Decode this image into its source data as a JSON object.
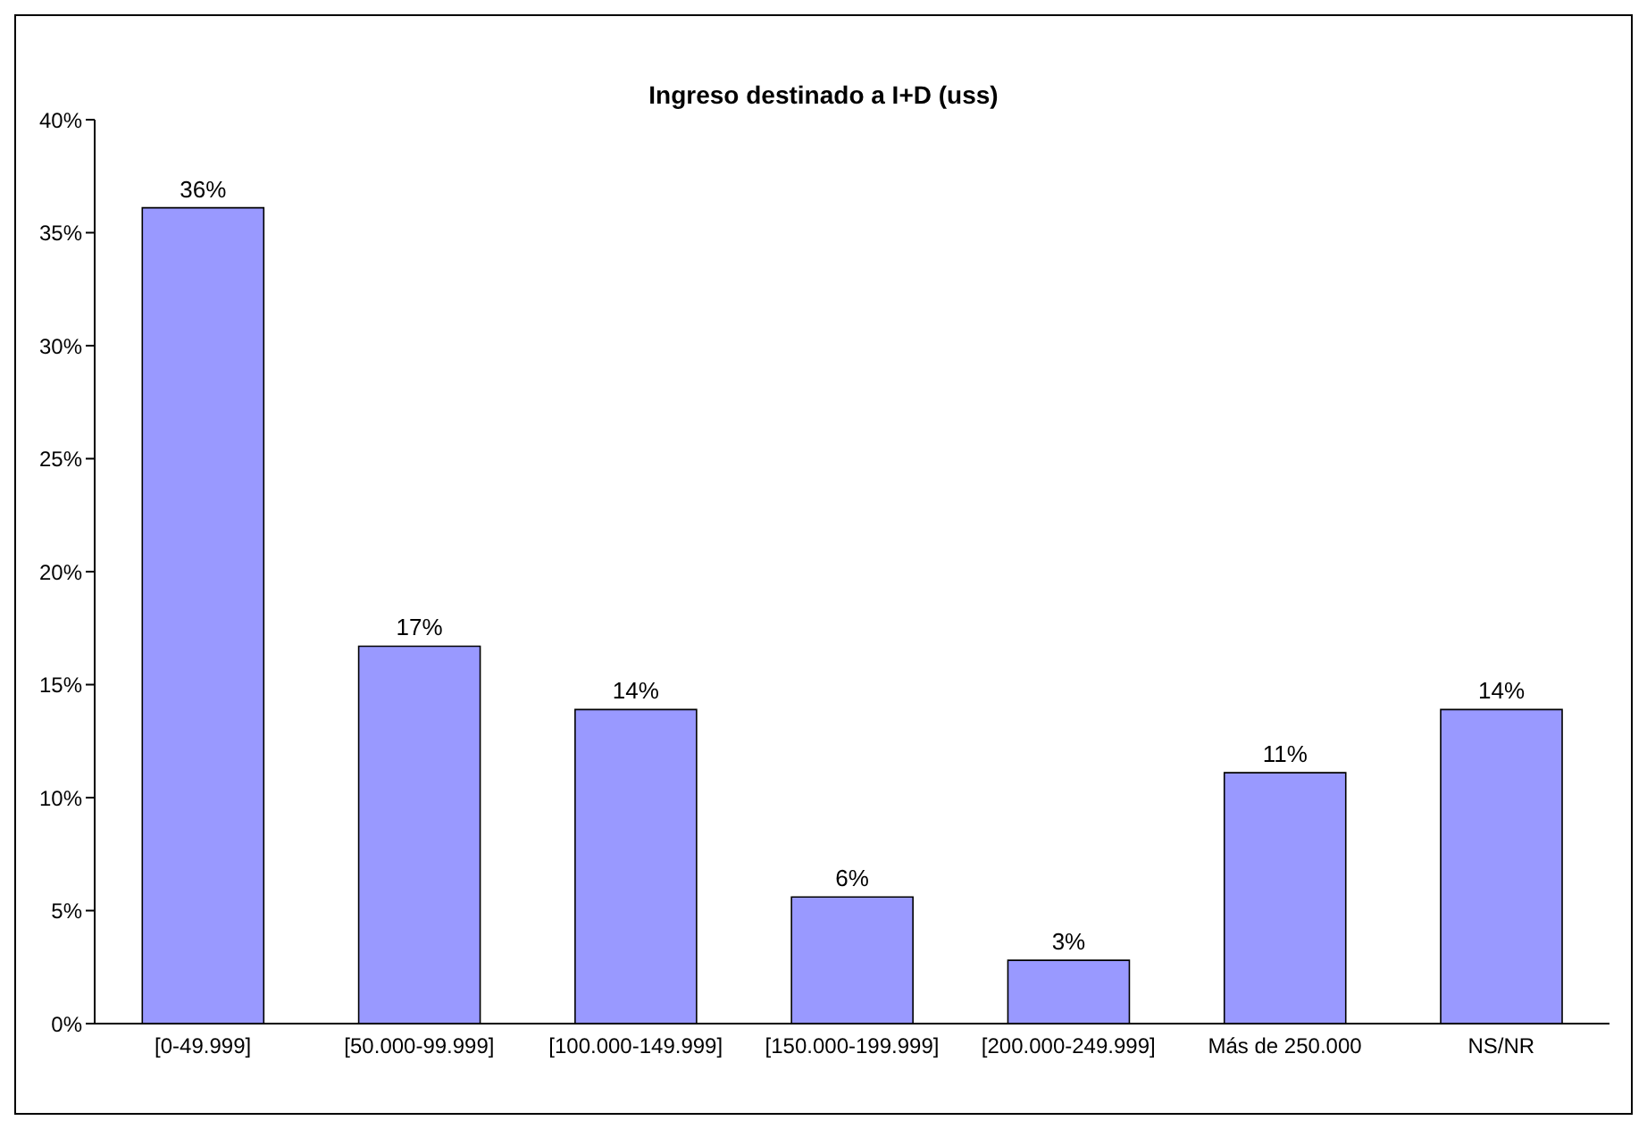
{
  "chart_data": {
    "type": "bar",
    "title": "Ingreso destinado a I+D (uss)",
    "categories": [
      "[0-49.999]",
      "[50.000-99.999]",
      "[100.000-149.999]",
      "[150.000-199.999]",
      "[200.000-249.999]",
      "Más de 250.000",
      "NS/NR"
    ],
    "values": [
      36.1,
      16.7,
      13.9,
      5.6,
      2.8,
      11.1,
      13.9
    ],
    "value_labels": [
      "36%",
      "17%",
      "14%",
      "6%",
      "3%",
      "11%",
      "14%"
    ],
    "color": "#9999ff",
    "ylim": [
      0,
      40
    ],
    "yticks": [
      {
        "value": 0,
        "label": "0%"
      },
      {
        "value": 5,
        "label": "5%"
      },
      {
        "value": 10,
        "label": "10%"
      },
      {
        "value": 15,
        "label": "15%"
      },
      {
        "value": 20,
        "label": "20%"
      },
      {
        "value": 25,
        "label": "25%"
      },
      {
        "value": 30,
        "label": "30%"
      },
      {
        "value": 35,
        "label": "35%"
      },
      {
        "value": 40,
        "label": "40%"
      }
    ],
    "grid": false,
    "legend": false
  }
}
